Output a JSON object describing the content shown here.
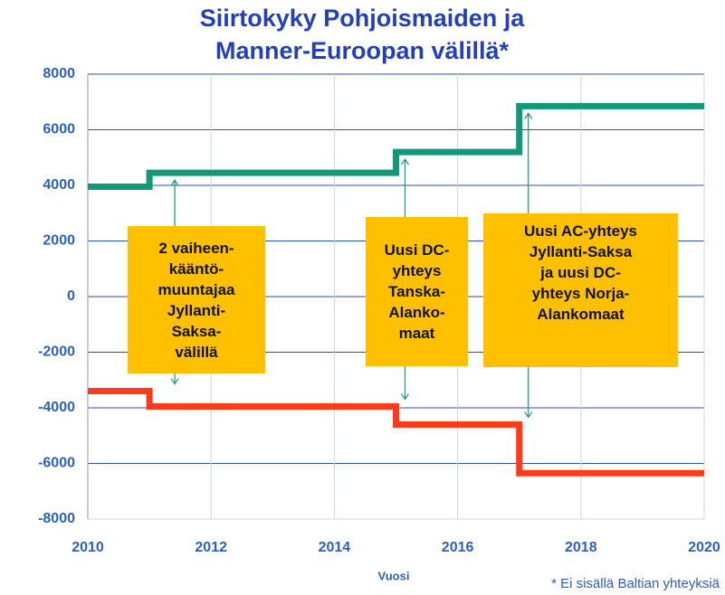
{
  "chart_data": {
    "type": "line",
    "title_lines": [
      "Siirtokyky Pohjoismaiden ja",
      "Manner-Euroopan välillä*"
    ],
    "x": [
      2010,
      2011,
      2011,
      2015,
      2015,
      2017,
      2017,
      2020
    ],
    "series": [
      {
        "color": "#13987a",
        "values": [
          3950,
          3950,
          4450,
          4450,
          5200,
          5200,
          6850,
          6850
        ]
      },
      {
        "color": "#ff3b1c",
        "values": [
          -3400,
          -3400,
          -3950,
          -3950,
          -4600,
          -4600,
          -6350,
          -6350
        ]
      }
    ],
    "xlim": [
      2010,
      2020
    ],
    "xticks": [
      2010,
      2012,
      2014,
      2016,
      2018,
      2020
    ],
    "ylim": [
      -8000,
      8000
    ],
    "yticks": [
      -8000,
      -6000,
      -4000,
      -2000,
      0,
      2000,
      4000,
      6000,
      8000
    ],
    "grid": true,
    "xlabel": "Vuosi",
    "footnote": "* Ei sisällä Baltian yhteyksiä",
    "annotations": [
      {
        "lines": [
          "2 vaiheen-",
          "kääntö-",
          "muuntajaa",
          "Jyllanti-",
          "Saksa-",
          "välillä"
        ]
      },
      {
        "lines": [
          "Uusi DC-",
          "yhteys",
          "Tanska-",
          "Alanko-",
          "maat"
        ]
      },
      {
        "lines": [
          "Uusi AC-yhteys",
          "Jyllanti-Saksa",
          "ja uusi DC-",
          "yhteys Norja-",
          "Alankomaat"
        ]
      }
    ]
  }
}
